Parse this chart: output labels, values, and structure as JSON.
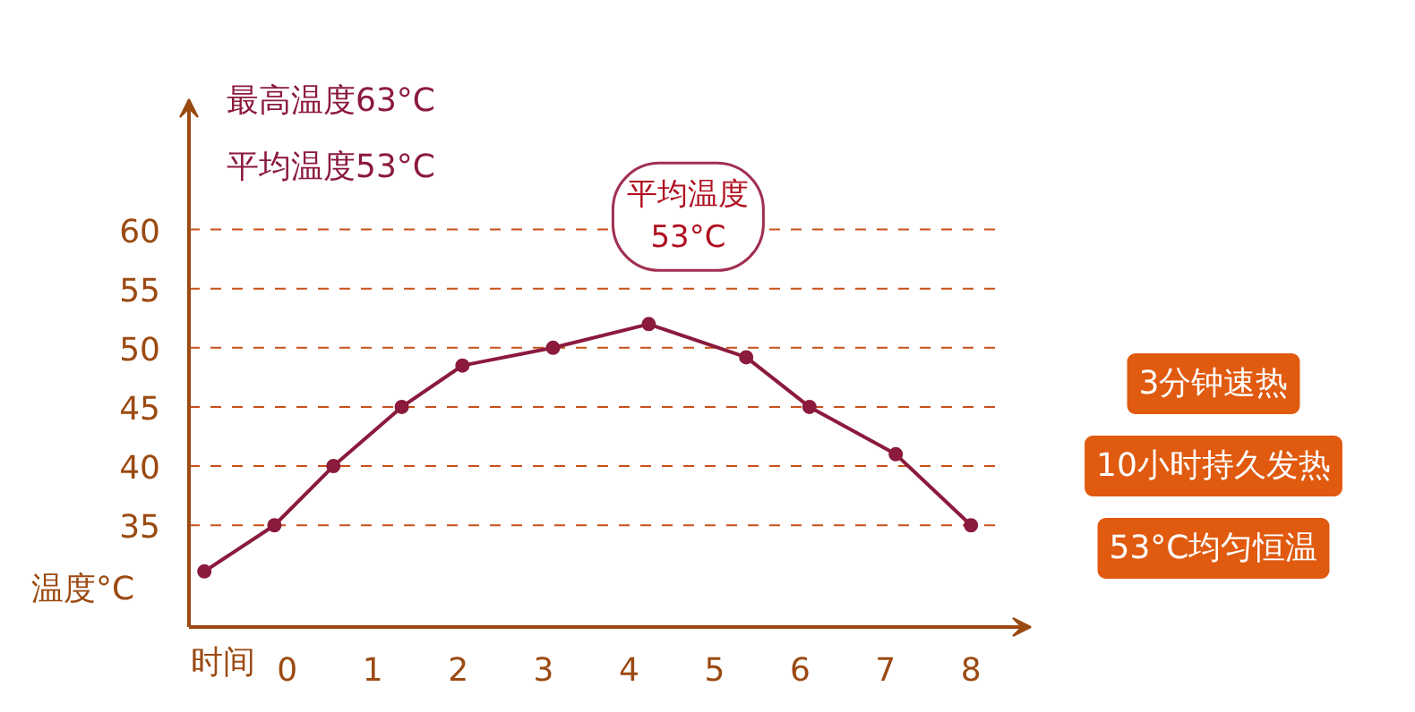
{
  "chart_data": {
    "type": "line",
    "xlabel": "时间",
    "ylabel": "温度°C",
    "x": [
      -0.97,
      -0.15,
      0.54,
      1.34,
      2.05,
      3.11,
      4.23,
      5.37,
      6.11,
      7.12,
      8.0
    ],
    "series": [
      {
        "color": "#8b1a3c",
        "values": [
          31.1,
          35,
          40,
          45,
          48.5,
          50,
          52,
          49.2,
          45,
          41,
          35
        ]
      }
    ],
    "xlim": [
      -1.15,
      8.7
    ],
    "ylim": [
      26.4,
      71
    ],
    "xticks": [
      0,
      1,
      2,
      3,
      4,
      5,
      6,
      7,
      8
    ],
    "yticks": [
      35,
      40,
      45,
      50,
      55,
      60
    ],
    "grid": "y",
    "marker": "circle",
    "line_style": "solid",
    "annotations": [
      "最高温度63°C",
      "平均温度53°C",
      {
        "text": "平均温度\n53°C",
        "x": 4.23,
        "y": 52
      },
      "3分钟速热",
      "10小时持久发热",
      "53°C均匀恒温"
    ]
  }
}
